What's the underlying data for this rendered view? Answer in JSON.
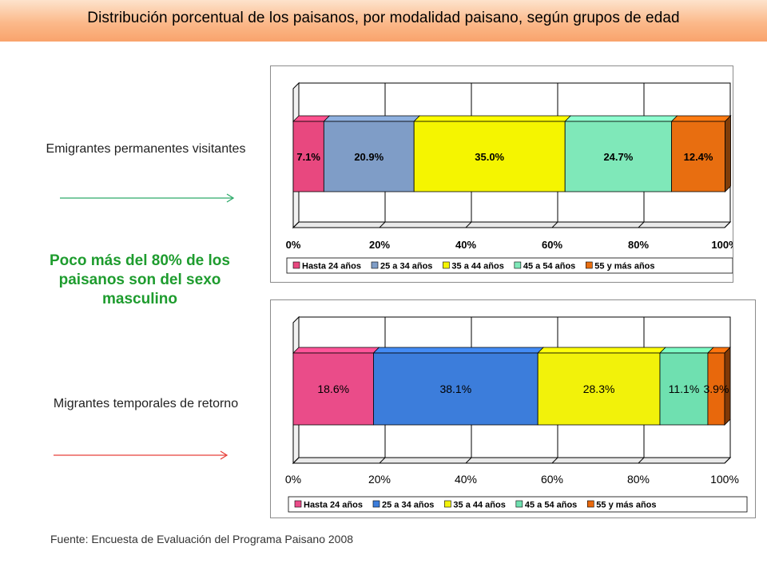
{
  "header": {
    "title": "Distribución porcentual de los paisanos, por modalidad paisano, según grupos de edad",
    "bg_color": "#fbb98a"
  },
  "labels": {
    "chart1_label": "Emigrantes permanentes visitantes",
    "chart2_label": "Migrantes temporales de retorno",
    "highlight": "Poco más del 80% de los paisanos son del sexo  masculino",
    "source": "Fuente: Encuesta de Evaluación del Programa Paisano 2008"
  },
  "arrows": {
    "green": "#2eaa6a",
    "red": "#e8403a"
  },
  "chart_data": [
    {
      "type": "bar",
      "orientation": "horizontal-stacked-100",
      "x_ticks": [
        "0%",
        "20%",
        "40%",
        "60%",
        "80%",
        "100%"
      ],
      "xlim": [
        0,
        100
      ],
      "series": [
        {
          "name": "Hasta 24 años",
          "values": [
            7.1
          ],
          "label": "7.1%",
          "color": "#e8487f"
        },
        {
          "name": "25 a 34 años",
          "values": [
            20.9
          ],
          "label": "20.9%",
          "color": "#7f9dc7"
        },
        {
          "name": "35 a 44 años",
          "values": [
            35.0
          ],
          "label": "35.0%",
          "color": "#f5f500"
        },
        {
          "name": "45 a 54 años",
          "values": [
            24.7
          ],
          "label": "24.7%",
          "color": "#7fe8b9"
        },
        {
          "name": "55 y más años",
          "values": [
            12.4
          ],
          "label": "12.4%",
          "color": "#e86e10"
        }
      ],
      "grid": true,
      "legend": "bottom"
    },
    {
      "type": "bar",
      "orientation": "horizontal-stacked-100",
      "x_ticks": [
        "0%",
        "20%",
        "40%",
        "60%",
        "80%",
        "100%"
      ],
      "xlim": [
        0,
        100
      ],
      "series": [
        {
          "name": "Hasta 24 años",
          "values": [
            18.6
          ],
          "label": "18.6%",
          "color": "#ea4c89"
        },
        {
          "name": "25 a 34 años",
          "values": [
            38.1
          ],
          "label": "38.1%",
          "color": "#3c7ddb"
        },
        {
          "name": "35 a 44 años",
          "values": [
            28.3
          ],
          "label": "28.3%",
          "color": "#f2f20a"
        },
        {
          "name": "45 a 54 años",
          "values": [
            11.1
          ],
          "label": "11.1%",
          "color": "#6fe0b0"
        },
        {
          "name": "55 y más años",
          "values": [
            3.9
          ],
          "label": "3.9%",
          "color": "#e8680c"
        }
      ],
      "grid": true,
      "legend": "bottom"
    }
  ]
}
